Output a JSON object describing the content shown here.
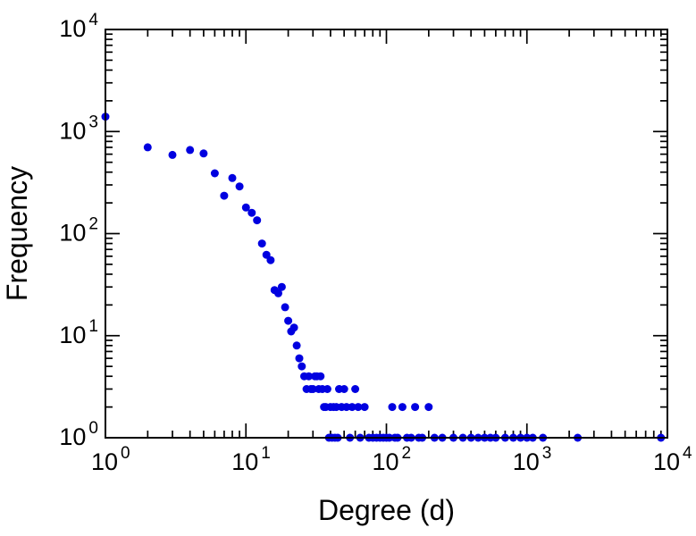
{
  "chart_data": {
    "type": "scatter",
    "title": "",
    "xlabel": "Degree (d)",
    "ylabel": "Frequency",
    "x_scale": "log",
    "y_scale": "log",
    "xlim": [
      1,
      10000
    ],
    "ylim": [
      1,
      10000
    ],
    "x_tick_exponents": [
      0,
      1,
      2,
      3,
      4
    ],
    "y_tick_exponents": [
      0,
      1,
      2,
      3,
      4
    ],
    "tick_label_base": "10",
    "grid": false,
    "legend": "none",
    "marker": {
      "shape": "circle",
      "color": "#0000e0",
      "radius": 4.5
    },
    "points": [
      [
        1,
        1400
      ],
      [
        2,
        700
      ],
      [
        3,
        590
      ],
      [
        4,
        660
      ],
      [
        5,
        610
      ],
      [
        6,
        390
      ],
      [
        7,
        235
      ],
      [
        8,
        350
      ],
      [
        9,
        290
      ],
      [
        10,
        180
      ],
      [
        11,
        160
      ],
      [
        12,
        135
      ],
      [
        13,
        80
      ],
      [
        14,
        62
      ],
      [
        15,
        55
      ],
      [
        16,
        28
      ],
      [
        17,
        26
      ],
      [
        18,
        30
      ],
      [
        19,
        19
      ],
      [
        20,
        14
      ],
      [
        21,
        11
      ],
      [
        22,
        12
      ],
      [
        23,
        8
      ],
      [
        24,
        6
      ],
      [
        25,
        5
      ],
      [
        26,
        4
      ],
      [
        27,
        3
      ],
      [
        28,
        4
      ],
      [
        29,
        3
      ],
      [
        30,
        3
      ],
      [
        31,
        4
      ],
      [
        32,
        4
      ],
      [
        33,
        3
      ],
      [
        34,
        4
      ],
      [
        35,
        3
      ],
      [
        36,
        2
      ],
      [
        37,
        2
      ],
      [
        38,
        3
      ],
      [
        39,
        1
      ],
      [
        40,
        2
      ],
      [
        41,
        1
      ],
      [
        42,
        2
      ],
      [
        43,
        1
      ],
      [
        44,
        2
      ],
      [
        45,
        1
      ],
      [
        46,
        3
      ],
      [
        48,
        2
      ],
      [
        50,
        3
      ],
      [
        52,
        2
      ],
      [
        55,
        1
      ],
      [
        57,
        2
      ],
      [
        60,
        3
      ],
      [
        63,
        2
      ],
      [
        65,
        1
      ],
      [
        70,
        2
      ],
      [
        75,
        1
      ],
      [
        80,
        1
      ],
      [
        85,
        1
      ],
      [
        90,
        1
      ],
      [
        95,
        1
      ],
      [
        100,
        1
      ],
      [
        105,
        1
      ],
      [
        110,
        2
      ],
      [
        115,
        1
      ],
      [
        120,
        1
      ],
      [
        130,
        2
      ],
      [
        140,
        1
      ],
      [
        150,
        1
      ],
      [
        160,
        2
      ],
      [
        170,
        1
      ],
      [
        180,
        1
      ],
      [
        200,
        2
      ],
      [
        220,
        1
      ],
      [
        250,
        1
      ],
      [
        300,
        1
      ],
      [
        350,
        1
      ],
      [
        400,
        1
      ],
      [
        450,
        1
      ],
      [
        500,
        1
      ],
      [
        550,
        1
      ],
      [
        600,
        1
      ],
      [
        700,
        1
      ],
      [
        800,
        1
      ],
      [
        900,
        1
      ],
      [
        1000,
        1
      ],
      [
        1100,
        1
      ],
      [
        1300,
        1
      ],
      [
        2300,
        1
      ],
      [
        9000,
        1
      ]
    ]
  }
}
